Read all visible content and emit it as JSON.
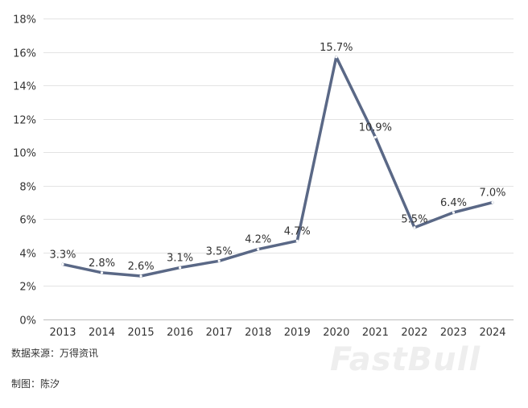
{
  "chart_data": {
    "type": "line",
    "title": "",
    "xlabel": "",
    "ylabel": "",
    "x": [
      "2013",
      "2014",
      "2015",
      "2016",
      "2017",
      "2018",
      "2019",
      "2020",
      "2021",
      "2022",
      "2023",
      "2024"
    ],
    "values": [
      3.3,
      2.8,
      2.6,
      3.1,
      3.5,
      4.2,
      4.7,
      15.7,
      10.9,
      5.5,
      6.4,
      7.0
    ],
    "data_labels": [
      "3.3%",
      "2.8%",
      "2.6%",
      "3.1%",
      "3.5%",
      "4.2%",
      "4.7%",
      "15.7%",
      "10.9%",
      "5.5%",
      "6.4%",
      "7.0%"
    ],
    "ylim": [
      0,
      18
    ],
    "yticks": [
      0,
      2,
      4,
      6,
      8,
      10,
      12,
      14,
      16,
      18
    ],
    "ytick_labels": [
      "0%",
      "2%",
      "4%",
      "6%",
      "8%",
      "10%",
      "12%",
      "14%",
      "16%",
      "18%"
    ],
    "grid": true,
    "line_color": "#5a6886",
    "grid_color": "#e3e3e3"
  },
  "footer": {
    "source": "数据来源：万得资讯",
    "author": "制图：陈汐",
    "watermark": "FastBull"
  }
}
